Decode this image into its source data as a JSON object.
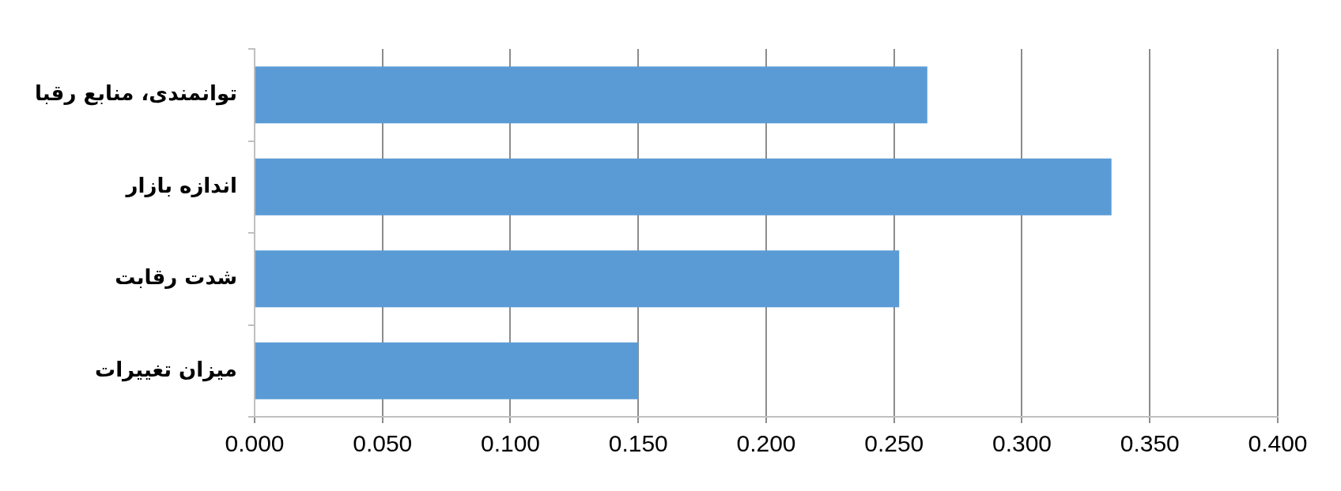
{
  "chart_data": {
    "type": "bar",
    "orientation": "horizontal",
    "categories": [
      "توانمندی، منابع رقبا",
      "اندازه بازار",
      "شدت رقابت",
      "میزان تغییرات"
    ],
    "values": [
      0.263,
      0.335,
      0.252,
      0.15
    ],
    "color": "#5b9bd5",
    "xlim": [
      0,
      0.4
    ],
    "xticks": [
      {
        "value": 0,
        "label": "0.000"
      },
      {
        "value": 0.05,
        "label": "0.050"
      },
      {
        "value": 0.1,
        "label": "0.100"
      },
      {
        "value": 0.15,
        "label": "0.150"
      },
      {
        "value": 0.2,
        "label": "0.200"
      },
      {
        "value": 0.25,
        "label": "0.250"
      },
      {
        "value": 0.3,
        "label": "0.300"
      },
      {
        "value": 0.35,
        "label": "0.350"
      },
      {
        "value": 0.4,
        "label": "0.400"
      }
    ],
    "grid": "x",
    "legend": false
  }
}
